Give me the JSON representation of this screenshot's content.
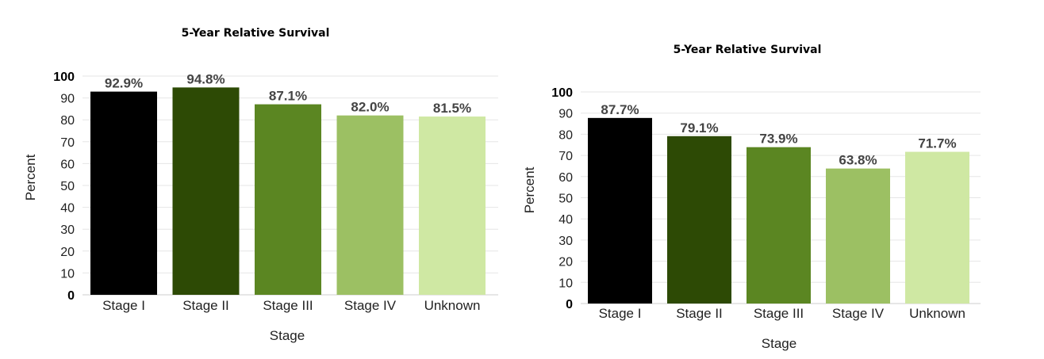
{
  "chart_data": [
    {
      "type": "bar",
      "title": "5-Year Relative Survival",
      "xlabel": "Stage",
      "ylabel": "Percent",
      "ylim": [
        0,
        100
      ],
      "yticks": [
        0,
        10,
        20,
        30,
        40,
        50,
        60,
        70,
        80,
        90,
        100
      ],
      "grid": true,
      "categories": [
        "Stage I",
        "Stage II",
        "Stage III",
        "Stage IV",
        "Unknown"
      ],
      "values": [
        92.9,
        94.8,
        87.1,
        82.0,
        81.5
      ],
      "labels": [
        "92.9%",
        "94.8%",
        "87.1%",
        "82.0%",
        "81.5%"
      ],
      "colors": [
        "#000000",
        "#2d4a05",
        "#5b8622",
        "#9cc063",
        "#cfe8a3"
      ]
    },
    {
      "type": "bar",
      "title": "5-Year Relative Survival",
      "xlabel": "Stage",
      "ylabel": "Percent",
      "ylim": [
        0,
        100
      ],
      "yticks": [
        0,
        10,
        20,
        30,
        40,
        50,
        60,
        70,
        80,
        90,
        100
      ],
      "grid": true,
      "categories": [
        "Stage I",
        "Stage II",
        "Stage III",
        "Stage IV",
        "Unknown"
      ],
      "values": [
        87.7,
        79.1,
        73.9,
        63.8,
        71.7
      ],
      "labels": [
        "87.7%",
        "79.1%",
        "73.9%",
        "63.8%",
        "71.7%"
      ],
      "colors": [
        "#000000",
        "#2d4a05",
        "#5b8622",
        "#9cc063",
        "#cfe8a3"
      ]
    }
  ]
}
